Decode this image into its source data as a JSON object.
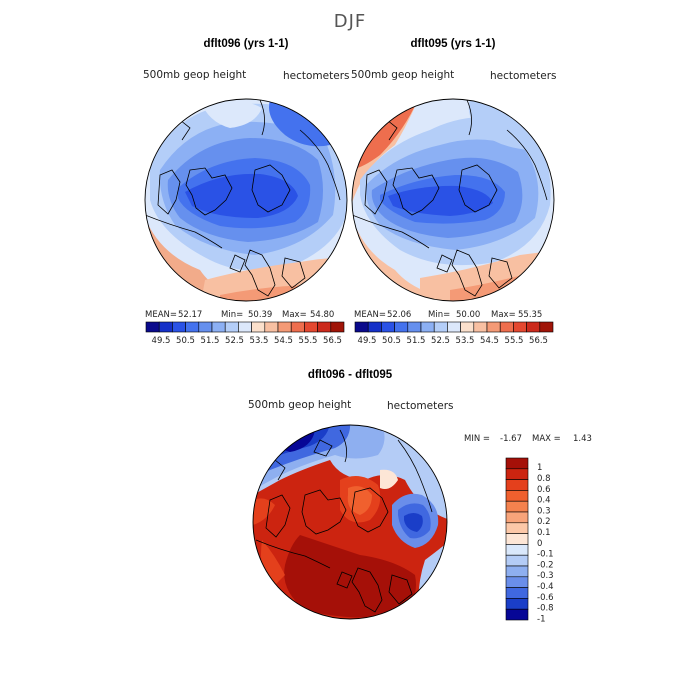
{
  "figure": {
    "title": "DJF"
  },
  "panels": [
    {
      "id": "dflt096",
      "title": "dflt096 (yrs 1-1)",
      "variable": "500mb geop height",
      "units": "hectometers",
      "stats": {
        "mean_label": "MEAN=",
        "mean": "52.17",
        "min_label": "Min=",
        "min": "50.39",
        "max_label": "Max=",
        "max": "54.80"
      }
    },
    {
      "id": "dflt095",
      "title": "dflt095 (yrs 1-1)",
      "variable": "500mb geop height",
      "units": "hectometers",
      "stats": {
        "mean_label": "MEAN=",
        "mean": "52.06",
        "min_label": "Min=",
        "min": "50.00",
        "max_label": "Max=",
        "max": "55.35"
      }
    }
  ],
  "diff_panel": {
    "title": "dflt096 - dflt095",
    "variable": "500mb geop height",
    "units": "hectometers",
    "min_label": "MIN =",
    "min": "-1.67",
    "max_label": "MAX =",
    "max": "1.43"
  },
  "colorbar_abs": {
    "labels": [
      "49.5",
      "50.5",
      "51.5",
      "52.5",
      "53.5",
      "54.5",
      "55.5",
      "56.5"
    ],
    "colors": [
      "#0a0a8c",
      "#1530c8",
      "#2a52e6",
      "#4472ee",
      "#6690ee",
      "#8cb0f4",
      "#b4cef8",
      "#dce8fb",
      "#fbe0cc",
      "#f8c0a2",
      "#f49a76",
      "#ee6e4e",
      "#e44830",
      "#cc2a1c",
      "#a01408"
    ]
  },
  "colorbar_diff": {
    "labels": [
      "1",
      "0.8",
      "0.6",
      "0.4",
      "0.3",
      "0.2",
      "0.1",
      "0",
      "-0.1",
      "-0.2",
      "-0.3",
      "-0.4",
      "-0.6",
      "-0.8",
      "-1"
    ],
    "colors": [
      "#a51008",
      "#cc2410",
      "#e4401c",
      "#f0602e",
      "#f4824e",
      "#f8a47a",
      "#fcc8a8",
      "#fde6d6",
      "#dae8fb",
      "#b4ccf6",
      "#8eaff0",
      "#6a8eea",
      "#4068e0",
      "#1a3ec8",
      "#060696"
    ]
  }
}
